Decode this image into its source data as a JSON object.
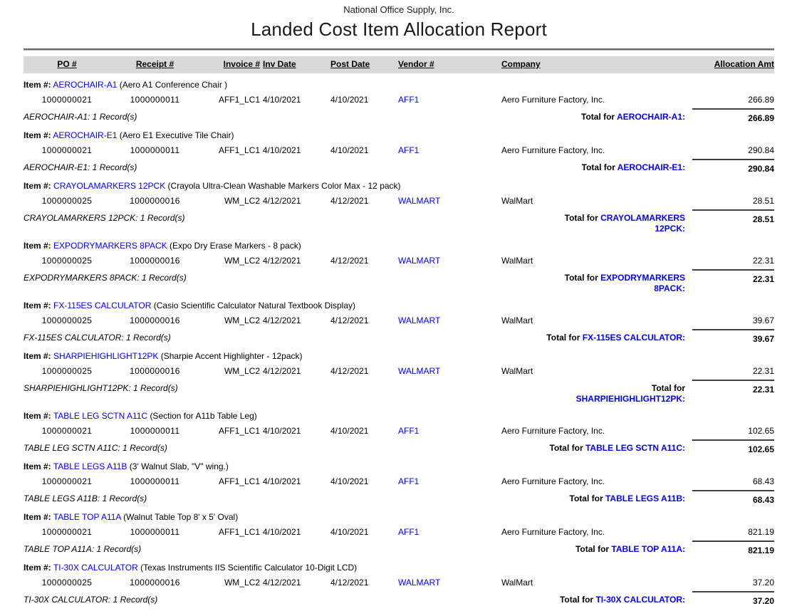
{
  "report": {
    "company": "National Office Supply, Inc.",
    "title": "Landed Cost Item Allocation Report"
  },
  "colors": {
    "link_blue": "#0000ff",
    "header_bar_bg": "#d9d9d9"
  },
  "labels": {
    "item_prefix": "Item #:",
    "total_prefix": "Total for"
  },
  "table": {
    "columns": [
      "PO #",
      "Receipt #",
      "Invoice #",
      "Inv Date",
      "Post Date",
      "Vendor #",
      "Company",
      "Allocation Amt"
    ]
  },
  "groups": [
    {
      "code": "AEROCHAIR-A1",
      "description": "(Aero A1 Conference Chair )",
      "row": {
        "po": "1000000021",
        "receipt": "1000000011",
        "invoice": "AFF1_LC1",
        "inv_date": "4/10/2021",
        "post_date": "4/10/2021",
        "vendor": "AFF1",
        "company": "Aero Furniture Factory, Inc.",
        "amount": "266.89"
      },
      "records_line": "AEROCHAIR-A1: 1 Record(s)",
      "total_line1": "AEROCHAIR-A1:",
      "total_line2": "",
      "total_amount": "266.89"
    },
    {
      "code": "AEROCHAIR-E1",
      "description": "(Aero E1 Executive Tile Chair)",
      "row": {
        "po": "1000000021",
        "receipt": "1000000011",
        "invoice": "AFF1_LC1",
        "inv_date": "4/10/2021",
        "post_date": "4/10/2021",
        "vendor": "AFF1",
        "company": "Aero Furniture Factory, Inc.",
        "amount": "290.84"
      },
      "records_line": "AEROCHAIR-E1: 1 Record(s)",
      "total_line1": "AEROCHAIR-E1:",
      "total_line2": "",
      "total_amount": "290.84"
    },
    {
      "code": "CRAYOLAMARKERS 12PCK",
      "description": "(Crayola Ultra-Clean Washable Markers Color Max - 12 pack)",
      "row": {
        "po": "1000000025",
        "receipt": "1000000016",
        "invoice": "WM_LC2",
        "inv_date": "4/12/2021",
        "post_date": "4/12/2021",
        "vendor": "WALMART",
        "company": "WalMart",
        "amount": "28.51"
      },
      "records_line": "CRAYOLAMARKERS 12PCK: 1 Record(s)",
      "total_line1": "CRAYOLAMARKERS",
      "total_line2": "12PCK:",
      "total_amount": "28.51"
    },
    {
      "code": "EXPODRYMARKERS 8PACK",
      "description": "(Expo Dry Erase Markers - 8 pack)",
      "row": {
        "po": "1000000025",
        "receipt": "1000000016",
        "invoice": "WM_LC2",
        "inv_date": "4/12/2021",
        "post_date": "4/12/2021",
        "vendor": "WALMART",
        "company": "WalMart",
        "amount": "22.31"
      },
      "records_line": "EXPODRYMARKERS 8PACK: 1 Record(s)",
      "total_line1": "EXPODRYMARKERS",
      "total_line2": "8PACK:",
      "total_amount": "22.31"
    },
    {
      "code": "FX-115ES CALCULATOR",
      "description": "(Casio Scientific Calculator Natural Textbook Display)",
      "row": {
        "po": "1000000025",
        "receipt": "1000000016",
        "invoice": "WM_LC2",
        "inv_date": "4/12/2021",
        "post_date": "4/12/2021",
        "vendor": "WALMART",
        "company": "WalMart",
        "amount": "39.67"
      },
      "records_line": "FX-115ES CALCULATOR: 1 Record(s)",
      "total_line1": "FX-115ES CALCULATOR:",
      "total_line2": "",
      "total_amount": "39.67"
    },
    {
      "code": "SHARPIEHIGHLIGHT12PK",
      "description": "(Sharpie Accent Highlighter - 12pack)",
      "row": {
        "po": "1000000025",
        "receipt": "1000000016",
        "invoice": "WM_LC2",
        "inv_date": "4/12/2021",
        "post_date": "4/12/2021",
        "vendor": "WALMART",
        "company": "WalMart",
        "amount": "22.31"
      },
      "records_line": "SHARPIEHIGHLIGHT12PK: 1 Record(s)",
      "total_line1": "",
      "total_line2": "SHARPIEHIGHLIGHT12PK:",
      "total_amount": "22.31"
    },
    {
      "code": "TABLE LEG SCTN A11C",
      "description": "(Section for A11b Table Leg)",
      "row": {
        "po": "1000000021",
        "receipt": "1000000011",
        "invoice": "AFF1_LC1",
        "inv_date": "4/10/2021",
        "post_date": "4/10/2021",
        "vendor": "AFF1",
        "company": "Aero Furniture Factory, Inc.",
        "amount": "102.65"
      },
      "records_line": "TABLE LEG SCTN A11C: 1 Record(s)",
      "total_line1": "TABLE LEG SCTN A11C:",
      "total_line2": "",
      "total_amount": "102.65"
    },
    {
      "code": "TABLE LEGS A11B",
      "description": "(3' Walnut Slab, \"V\" wing.)",
      "row": {
        "po": "1000000021",
        "receipt": "1000000011",
        "invoice": "AFF1_LC1",
        "inv_date": "4/10/2021",
        "post_date": "4/10/2021",
        "vendor": "AFF1",
        "company": "Aero Furniture Factory, Inc.",
        "amount": "68.43"
      },
      "records_line": "TABLE LEGS A11B: 1 Record(s)",
      "total_line1": "TABLE LEGS A11B:",
      "total_line2": "",
      "total_amount": "68.43"
    },
    {
      "code": "TABLE TOP A11A",
      "description": "(Walnut Table Top 8' x 5' Oval)",
      "row": {
        "po": "1000000021",
        "receipt": "1000000011",
        "invoice": "AFF1_LC1",
        "inv_date": "4/10/2021",
        "post_date": "4/10/2021",
        "vendor": "AFF1",
        "company": "Aero Furniture Factory, Inc.",
        "amount": "821.19"
      },
      "records_line": "TABLE TOP A11A: 1 Record(s)",
      "total_line1": "TABLE TOP A11A:",
      "total_line2": "",
      "total_amount": "821.19"
    },
    {
      "code": "TI-30X CALCULATOR",
      "description": "(Texas Instruments IIS Scientific Calculator 10-Digit LCD)",
      "row": {
        "po": "1000000025",
        "receipt": "1000000016",
        "invoice": "WM_LC2",
        "inv_date": "4/12/2021",
        "post_date": "4/12/2021",
        "vendor": "WALMART",
        "company": "WalMart",
        "amount": "37.20"
      },
      "records_line": "TI-30X CALCULATOR: 1 Record(s)",
      "total_line1": "TI-30X CALCULATOR:",
      "total_line2": "",
      "total_amount": "37.20"
    }
  ]
}
